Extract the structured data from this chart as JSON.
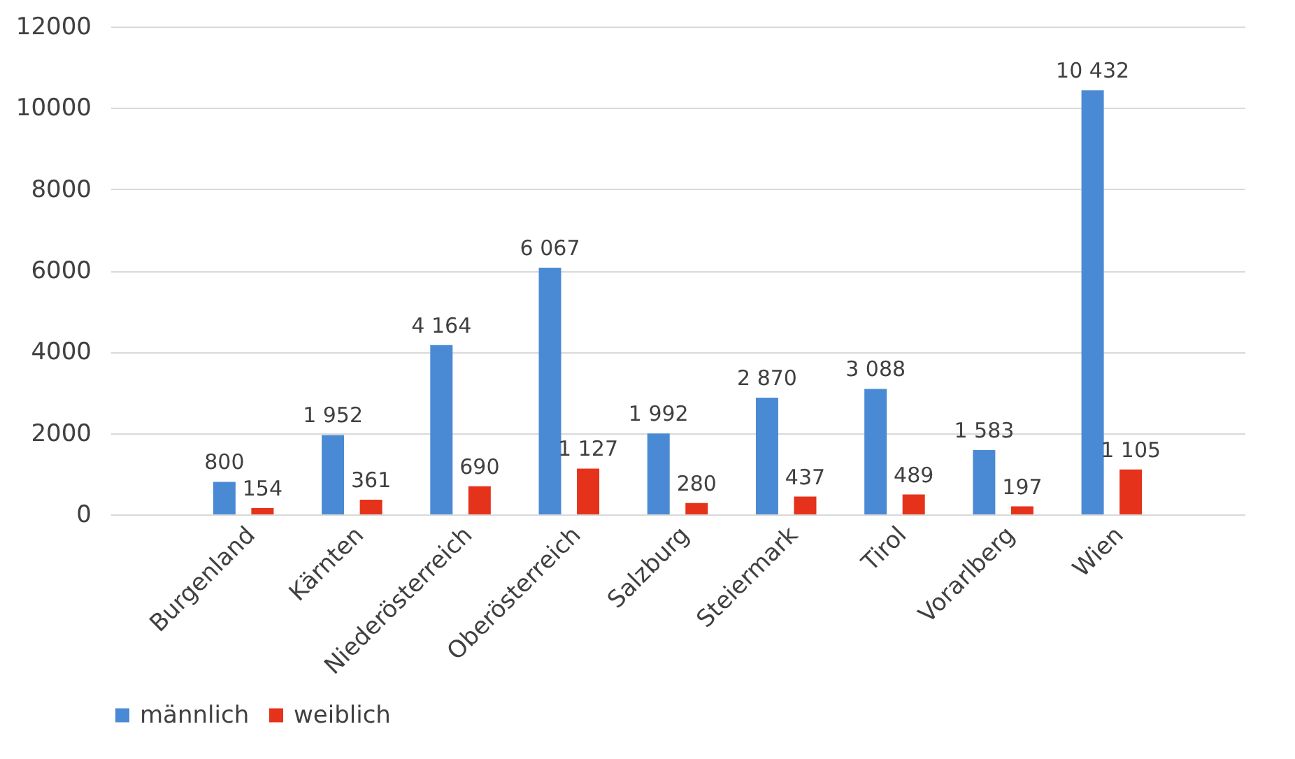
{
  "chart_data": {
    "type": "bar",
    "categories": [
      "Burgenland",
      "Kärnten",
      "Niederösterreich",
      "Oberösterreich",
      "Salzburg",
      "Steiermark",
      "Tirol",
      "Vorarlberg",
      "Wien"
    ],
    "series": [
      {
        "name": "männlich",
        "color": "#4a8ad4",
        "values": [
          800,
          1952,
          4164,
          6067,
          1992,
          2870,
          3088,
          1583,
          10432
        ],
        "value_labels": [
          "800",
          "1 952",
          "4 164",
          "6 067",
          "1 992",
          "2 870",
          "3 088",
          "1 583",
          "10 432"
        ]
      },
      {
        "name": "weiblich",
        "color": "#e5321b",
        "values": [
          154,
          361,
          690,
          1127,
          280,
          437,
          489,
          197,
          1105
        ],
        "value_labels": [
          "154",
          "361",
          "690",
          "1 127",
          "280",
          "437",
          "489",
          "197",
          "1 105"
        ]
      }
    ],
    "ylim": [
      0,
      12000
    ],
    "yticks": [
      0,
      2000,
      4000,
      6000,
      8000,
      10000,
      12000
    ],
    "grid": "y",
    "legend": "bottom"
  }
}
